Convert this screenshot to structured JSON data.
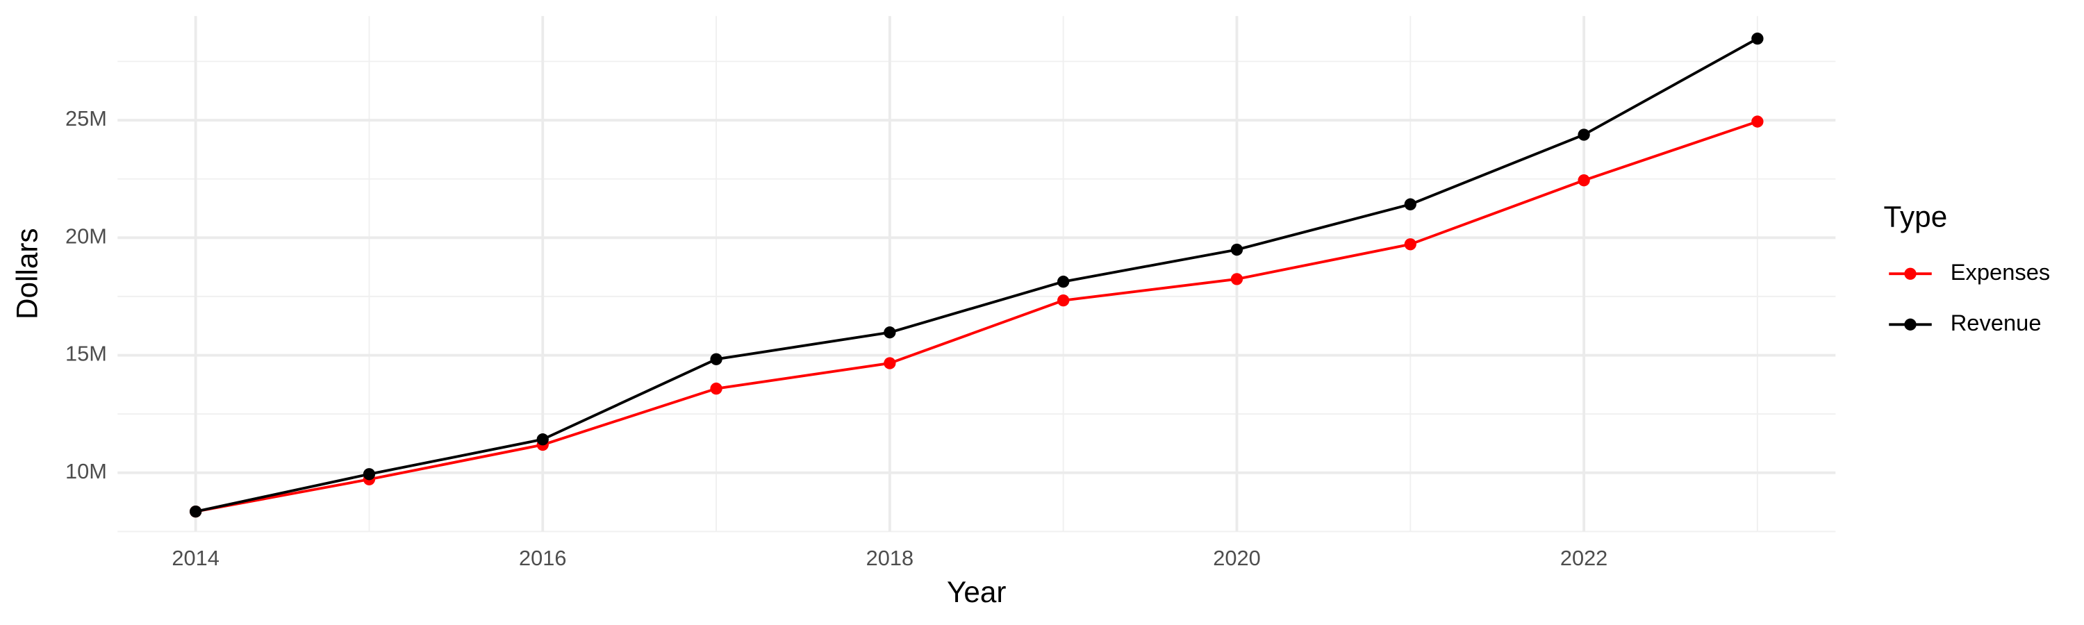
{
  "chart_data": {
    "type": "line",
    "x_label": "Year",
    "y_label": "Dollars",
    "legend_title": "Type",
    "legend_position": "right",
    "grid": true,
    "x": [
      2014,
      2015,
      2016,
      2017,
      2018,
      2019,
      2020,
      2021,
      2022,
      2023
    ],
    "series": [
      {
        "name": "Expenses",
        "color": "#ff0000",
        "values": [
          8350000,
          9720000,
          11190000,
          13580000,
          14660000,
          17330000,
          18240000,
          19720000,
          22440000,
          24940000
        ]
      },
      {
        "name": "Revenue",
        "color": "#000000",
        "values": [
          8350000,
          9940000,
          11420000,
          14830000,
          15970000,
          18130000,
          19490000,
          21420000,
          24380000,
          28470000
        ]
      }
    ],
    "xlim": [
      2013.55,
      2023.45
    ],
    "xticks": [
      2014,
      2016,
      2018,
      2020,
      2022
    ],
    "ylim": [
      7500000,
      29430000
    ],
    "yticks": [
      {
        "value": 10000000,
        "label": "10M"
      },
      {
        "value": 15000000,
        "label": "15M"
      },
      {
        "value": 20000000,
        "label": "20M"
      },
      {
        "value": 25000000,
        "label": "25M"
      }
    ]
  }
}
